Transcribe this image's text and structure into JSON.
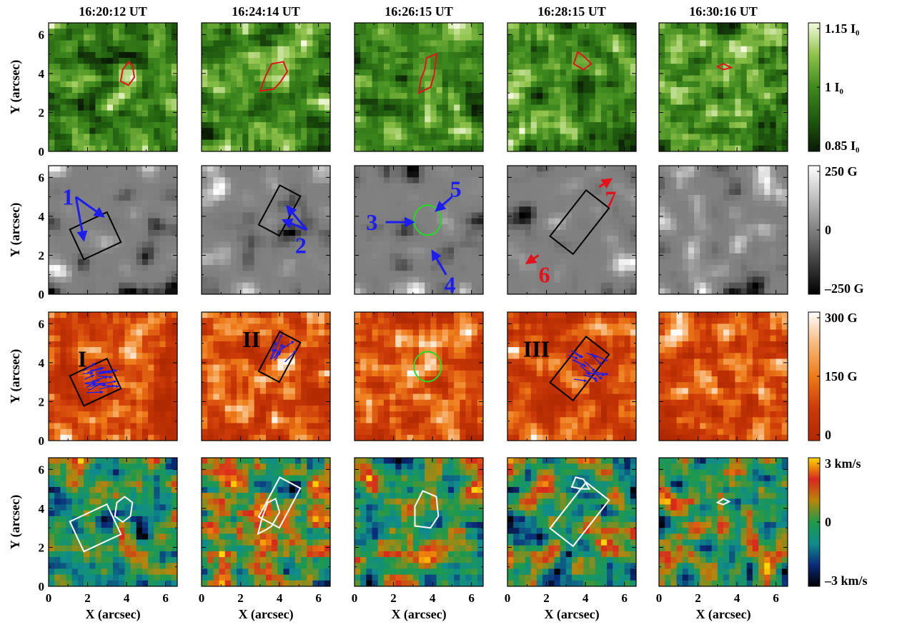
{
  "time_labels": [
    "16:20:12 UT",
    "16:24:14 UT",
    "16:26:15 UT",
    "16:28:15 UT",
    "16:30:16 UT"
  ],
  "ylabel": "Y (arcsec)",
  "xlabel": "X (arcsec)",
  "tick_values": [
    "0",
    "2",
    "4",
    "6"
  ],
  "panel_rows": [
    {
      "name": "intensity",
      "colormap": [
        "#0a1a05",
        "#1f5a0e",
        "#3f8a1e",
        "#8ec24a",
        "#f4fbdc"
      ],
      "colorbar_labels": {
        "top": "1.15 I₀",
        "mid": "1 I₀",
        "bottom": "0.85 I₀"
      }
    },
    {
      "name": "longitudinal-field",
      "colormap": [
        "#000000",
        "#808080",
        "#ffffff"
      ],
      "colorbar_labels": {
        "top": "250 G",
        "mid": "0",
        "bottom": "–250 G"
      }
    },
    {
      "name": "transverse-field",
      "colormap": [
        "#b02800",
        "#cc3a08",
        "#ee7b18",
        "#f7b87a",
        "#ffffff"
      ],
      "colorbar_labels": {
        "top": "300 G",
        "mid": "150 G",
        "bottom": "0"
      }
    },
    {
      "name": "doppler-velocity",
      "colormap": [
        "#000000",
        "#0b2b7a",
        "#0f8c8c",
        "#1f9a4a",
        "#b8860b",
        "#d9281c",
        "#ffd700"
      ],
      "colorbar_labels": {
        "top": "3 km/s",
        "mid": "0",
        "bottom": "–3 km/s"
      }
    }
  ],
  "annotations": {
    "blue_numbers": [
      "1",
      "2",
      "3",
      "4",
      "5"
    ],
    "red_numbers": [
      "6",
      "7"
    ],
    "roman": [
      "I",
      "II",
      "III"
    ]
  },
  "colors": {
    "contour_red": "#e3121a",
    "contour_green": "#22dd22",
    "arrow_blue": "#1d1df0",
    "arrow_red": "#e3121a",
    "box_black": "#000000",
    "contour_white": "#ffffff"
  }
}
